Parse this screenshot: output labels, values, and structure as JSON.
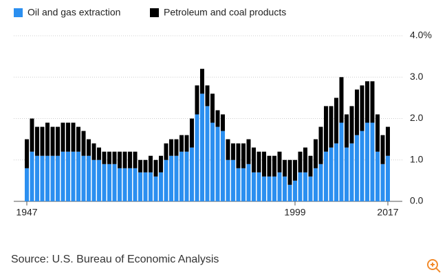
{
  "chart_data": {
    "type": "stacked_bar",
    "source": "Source: U.S. Bureau of Economic Analysis",
    "categories": [
      "1947",
      null,
      null,
      null,
      null,
      null,
      null,
      null,
      null,
      null,
      null,
      null,
      null,
      null,
      null,
      null,
      null,
      null,
      null,
      null,
      null,
      null,
      null,
      null,
      null,
      null,
      null,
      null,
      null,
      null,
      null,
      null,
      null,
      null,
      null,
      null,
      null,
      null,
      null,
      null,
      null,
      null,
      null,
      null,
      null,
      null,
      null,
      null,
      null,
      null,
      null,
      null,
      "1999",
      null,
      null,
      null,
      null,
      null,
      null,
      null,
      null,
      null,
      null,
      null,
      null,
      null,
      null,
      null,
      null,
      null,
      "2017"
    ],
    "series": [
      {
        "name": "Oil and gas extraction",
        "color": "#2b8ff0",
        "values": [
          0.8,
          1.2,
          1.1,
          1.1,
          1.1,
          1.1,
          1.1,
          1.2,
          1.2,
          1.2,
          1.2,
          1.1,
          1.1,
          1.0,
          1.0,
          0.9,
          0.9,
          0.9,
          0.8,
          0.8,
          0.8,
          0.8,
          0.7,
          0.7,
          0.7,
          0.6,
          0.7,
          1.0,
          1.1,
          1.1,
          1.2,
          1.2,
          1.3,
          2.1,
          2.6,
          2.3,
          1.9,
          1.8,
          1.7,
          1.0,
          1.0,
          0.8,
          0.8,
          0.9,
          0.7,
          0.7,
          0.6,
          0.6,
          0.6,
          0.7,
          0.6,
          0.4,
          0.5,
          0.7,
          0.7,
          0.6,
          0.8,
          0.9,
          1.2,
          1.3,
          1.4,
          1.9,
          1.3,
          1.4,
          1.6,
          1.7,
          1.9,
          1.9,
          1.2,
          0.9,
          1.1
        ]
      },
      {
        "name": "Petroleum and coal products",
        "color": "#000000",
        "values": [
          0.7,
          0.8,
          0.7,
          0.7,
          0.8,
          0.7,
          0.7,
          0.7,
          0.7,
          0.7,
          0.6,
          0.6,
          0.4,
          0.4,
          0.3,
          0.3,
          0.3,
          0.3,
          0.4,
          0.4,
          0.4,
          0.4,
          0.3,
          0.3,
          0.4,
          0.4,
          0.4,
          0.4,
          0.4,
          0.4,
          0.4,
          0.4,
          0.7,
          0.7,
          0.6,
          0.5,
          0.7,
          0.4,
          0.4,
          0.5,
          0.4,
          0.6,
          0.6,
          0.6,
          0.6,
          0.5,
          0.6,
          0.5,
          0.5,
          0.5,
          0.4,
          0.6,
          0.5,
          0.5,
          0.6,
          0.5,
          0.7,
          0.9,
          1.1,
          1.0,
          1.1,
          1.1,
          0.8,
          0.9,
          1.1,
          1.1,
          1.0,
          1.0,
          0.9,
          0.7,
          0.7
        ]
      }
    ],
    "ylim": [
      0,
      4
    ],
    "yticks": [
      {
        "value": 0,
        "label": "0.0"
      },
      {
        "value": 1,
        "label": "1.0"
      },
      {
        "value": 2,
        "label": "2.0"
      },
      {
        "value": 3,
        "label": "3.0"
      },
      {
        "value": 4,
        "label": "4.0%"
      }
    ],
    "grid": true,
    "legend": "top-left"
  }
}
